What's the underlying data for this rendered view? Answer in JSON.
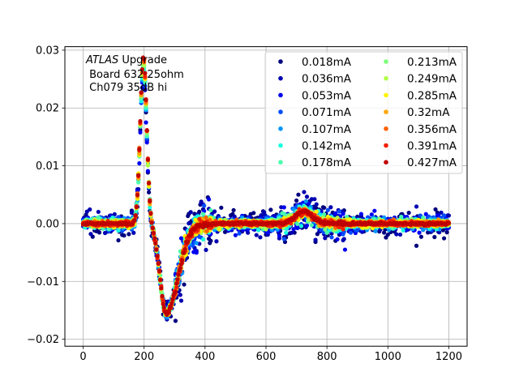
{
  "chart_data": {
    "type": "scatter",
    "annotation": {
      "italic": "ATLAS",
      "line1_rest": " Upgrade",
      "line2": " Board 632 25ohm",
      "line3": " Ch079 35dB hi"
    },
    "xlim": [
      -60,
      1260
    ],
    "ylim": [
      -0.0212,
      0.0306
    ],
    "x_ticks": [
      0,
      200,
      400,
      600,
      800,
      1000,
      1200
    ],
    "x_tick_labels": [
      "0",
      "200",
      "400",
      "600",
      "800",
      "1000",
      "1200"
    ],
    "y_ticks": [
      -0.02,
      -0.01,
      0.0,
      0.01,
      0.02,
      0.03
    ],
    "y_tick_labels": [
      "−0.02",
      "−0.01",
      "0.00",
      "0.01",
      "0.02",
      "0.03"
    ],
    "grid": true,
    "legend_position": "top-right",
    "legend_columns": 2,
    "series": [
      {
        "name": "0.018mA",
        "color": "#00007f",
        "noise": 0.0011,
        "amp": 0.0245
      },
      {
        "name": "0.036mA",
        "color": "#0000b2",
        "noise": 0.0009,
        "amp": 0.025
      },
      {
        "name": "0.053mA",
        "color": "#0000f1",
        "noise": 0.0007,
        "amp": 0.0255
      },
      {
        "name": "0.071mA",
        "color": "#004cff",
        "noise": 0.0006,
        "amp": 0.0258
      },
      {
        "name": "0.107mA",
        "color": "#0096ff",
        "noise": 0.0005,
        "amp": 0.0262
      },
      {
        "name": "0.142mA",
        "color": "#19ffe0",
        "noise": 0.0004,
        "amp": 0.0265
      },
      {
        "name": "0.178mA",
        "color": "#4affad",
        "noise": 0.0004,
        "amp": 0.0268
      },
      {
        "name": "0.213mA",
        "color": "#7dff7a",
        "noise": 0.0003,
        "amp": 0.027
      },
      {
        "name": "0.249mA",
        "color": "#b0ff46",
        "noise": 0.0003,
        "amp": 0.0272
      },
      {
        "name": "0.285mA",
        "color": "#fff200",
        "noise": 0.0003,
        "amp": 0.0274
      },
      {
        "name": "0.32mA",
        "color": "#ffa700",
        "noise": 0.0002,
        "amp": 0.0276
      },
      {
        "name": "0.356mA",
        "color": "#ff6000",
        "noise": 0.0002,
        "amp": 0.0278
      },
      {
        "name": "0.391mA",
        "color": "#f11f00",
        "noise": 0.0002,
        "amp": 0.028
      },
      {
        "name": "0.427mA",
        "color": "#bf0000",
        "noise": 0.0001,
        "amp": 0.0282
      }
    ]
  }
}
